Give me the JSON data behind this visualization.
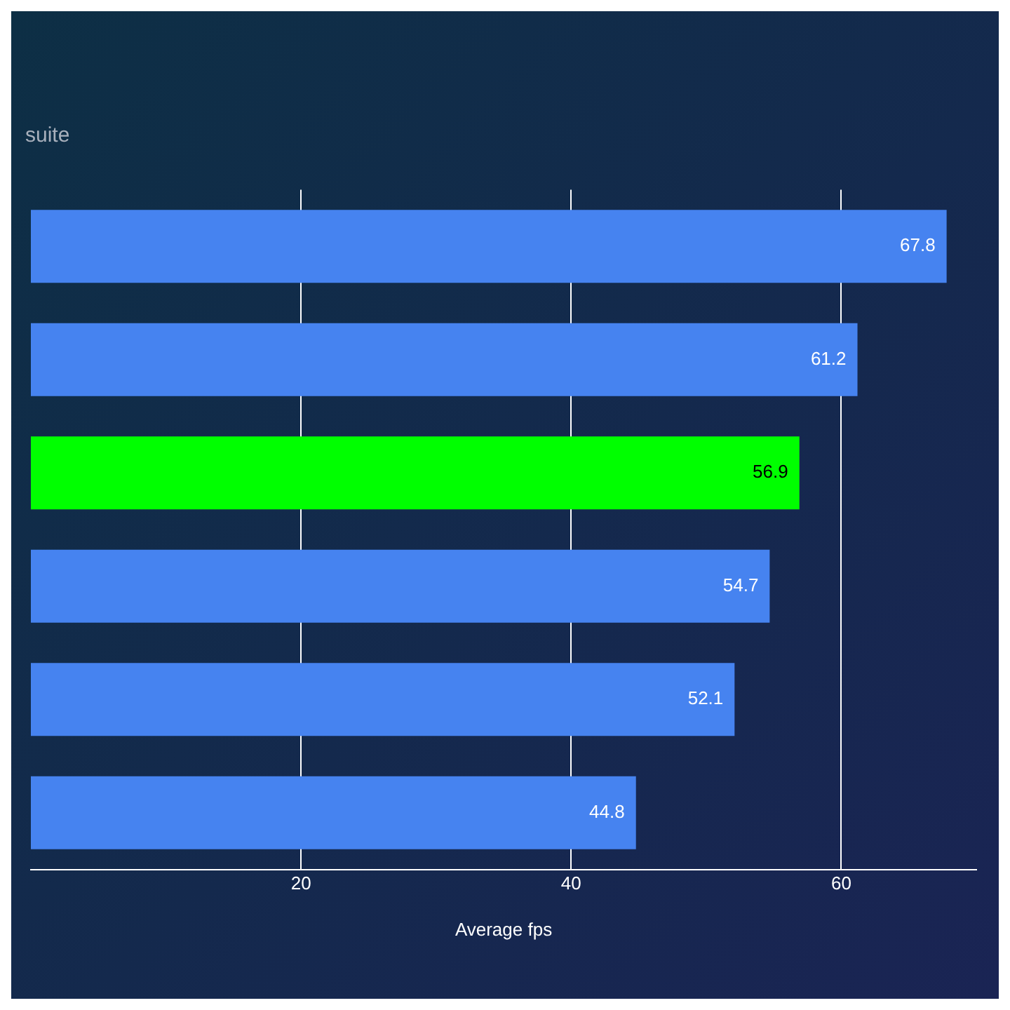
{
  "chart_data": {
    "type": "bar",
    "orientation": "horizontal",
    "subtitle": "suite",
    "xlabel": "Average fps",
    "categories": [
      null,
      null,
      null,
      null,
      null,
      null
    ],
    "values": [
      67.8,
      61.2,
      56.9,
      54.7,
      52.1,
      44.8
    ],
    "colors": [
      "#4683f0",
      "#4683f0",
      "#00ff00",
      "#4683f0",
      "#4683f0",
      "#4683f0"
    ],
    "xlim": [
      0,
      70
    ],
    "xticks": [
      20,
      40,
      60
    ],
    "grid": "x",
    "data_labels": true,
    "legend": false
  }
}
